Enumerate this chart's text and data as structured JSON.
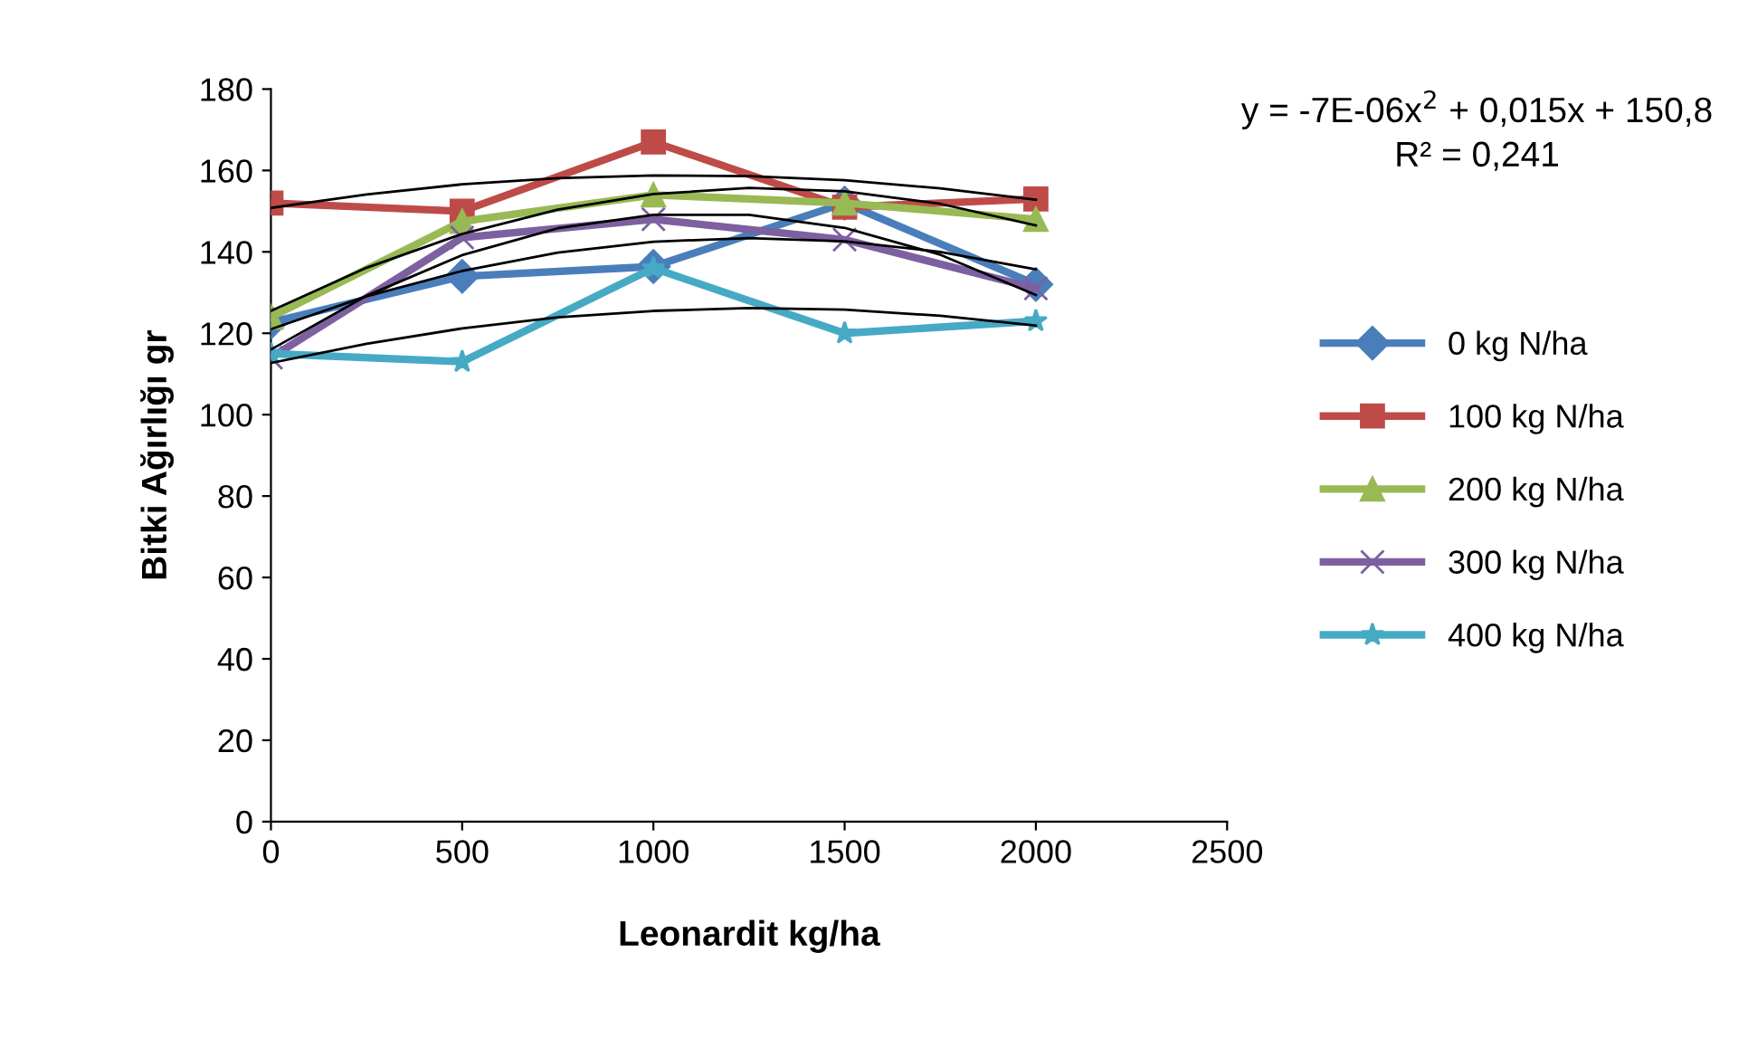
{
  "chart_data": {
    "type": "line",
    "xlabel": "Leonardit kg/ha",
    "ylabel": "Bitki Ağırlığı gr",
    "xlim": [
      0,
      2500
    ],
    "xticks": [
      0,
      500,
      1000,
      1500,
      2000,
      2500
    ],
    "ylim": [
      0,
      180
    ],
    "yticks": [
      0,
      20,
      40,
      60,
      80,
      100,
      120,
      140,
      160,
      180
    ],
    "grid": false,
    "legend": "right",
    "annotations": [
      "y = -7E-06x$^{2}$ + 0,015x + 150,8",
      "R² = 0,241"
    ],
    "x": [
      0,
      500,
      1000,
      1500,
      2000
    ],
    "series": [
      {
        "name": "0 kg N/ha",
        "color": "#4a7ebb",
        "marker": "diamond",
        "values": [
          122.7,
          134,
          136.4,
          152,
          132
        ]
      },
      {
        "name": "100 kg N/ha",
        "color": "#be4b48",
        "marker": "square",
        "values": [
          152,
          150,
          167,
          151,
          153
        ]
      },
      {
        "name": "200 kg N/ha",
        "color": "#98b954",
        "marker": "triangle",
        "values": [
          124,
          147.5,
          154,
          152,
          148
        ]
      },
      {
        "name": "300 kg N/ha",
        "color": "#7d60a0",
        "marker": "cross",
        "values": [
          114,
          143.5,
          148,
          143,
          131
        ]
      },
      {
        "name": "400 kg N/ha",
        "color": "#46aac5",
        "marker": "star",
        "values": [
          115,
          113,
          136,
          120,
          123
        ]
      },
      {
        "color": "#000000",
        "marker": "none",
        "x": [
          0,
          250,
          500,
          750,
          1000,
          1250,
          1500,
          1750,
          2000
        ],
        "values": [
          121.0,
          129.1,
          135.3,
          139.8,
          142.5,
          143.4,
          142.6,
          140.0,
          135.7
        ]
      },
      {
        "color": "#000000",
        "marker": "none",
        "x": [
          0,
          250,
          500,
          750,
          1000,
          1250,
          1500,
          1750,
          2000
        ],
        "values": [
          150.8,
          154.1,
          156.6,
          158.1,
          158.8,
          158.6,
          157.6,
          155.6,
          152.8
        ]
      },
      {
        "color": "#000000",
        "marker": "none",
        "x": [
          0,
          250,
          500,
          750,
          1000,
          1250,
          1500,
          1750,
          2000
        ],
        "values": [
          125.5,
          136.1,
          144.4,
          150.4,
          154.2,
          155.7,
          154.9,
          151.8,
          146.5
        ]
      },
      {
        "color": "#000000",
        "marker": "none",
        "x": [
          0,
          250,
          500,
          750,
          1000,
          1250,
          1500,
          1750,
          2000
        ],
        "values": [
          116.0,
          129.2,
          139.2,
          145.8,
          149.1,
          149.1,
          145.9,
          139.3,
          129.4
        ]
      },
      {
        "color": "#000000",
        "marker": "none",
        "x": [
          0,
          250,
          500,
          750,
          1000,
          1250,
          1500,
          1750,
          2000
        ],
        "values": [
          112.7,
          117.4,
          121.2,
          123.9,
          125.5,
          126.2,
          125.8,
          124.3,
          121.9
        ]
      }
    ]
  }
}
